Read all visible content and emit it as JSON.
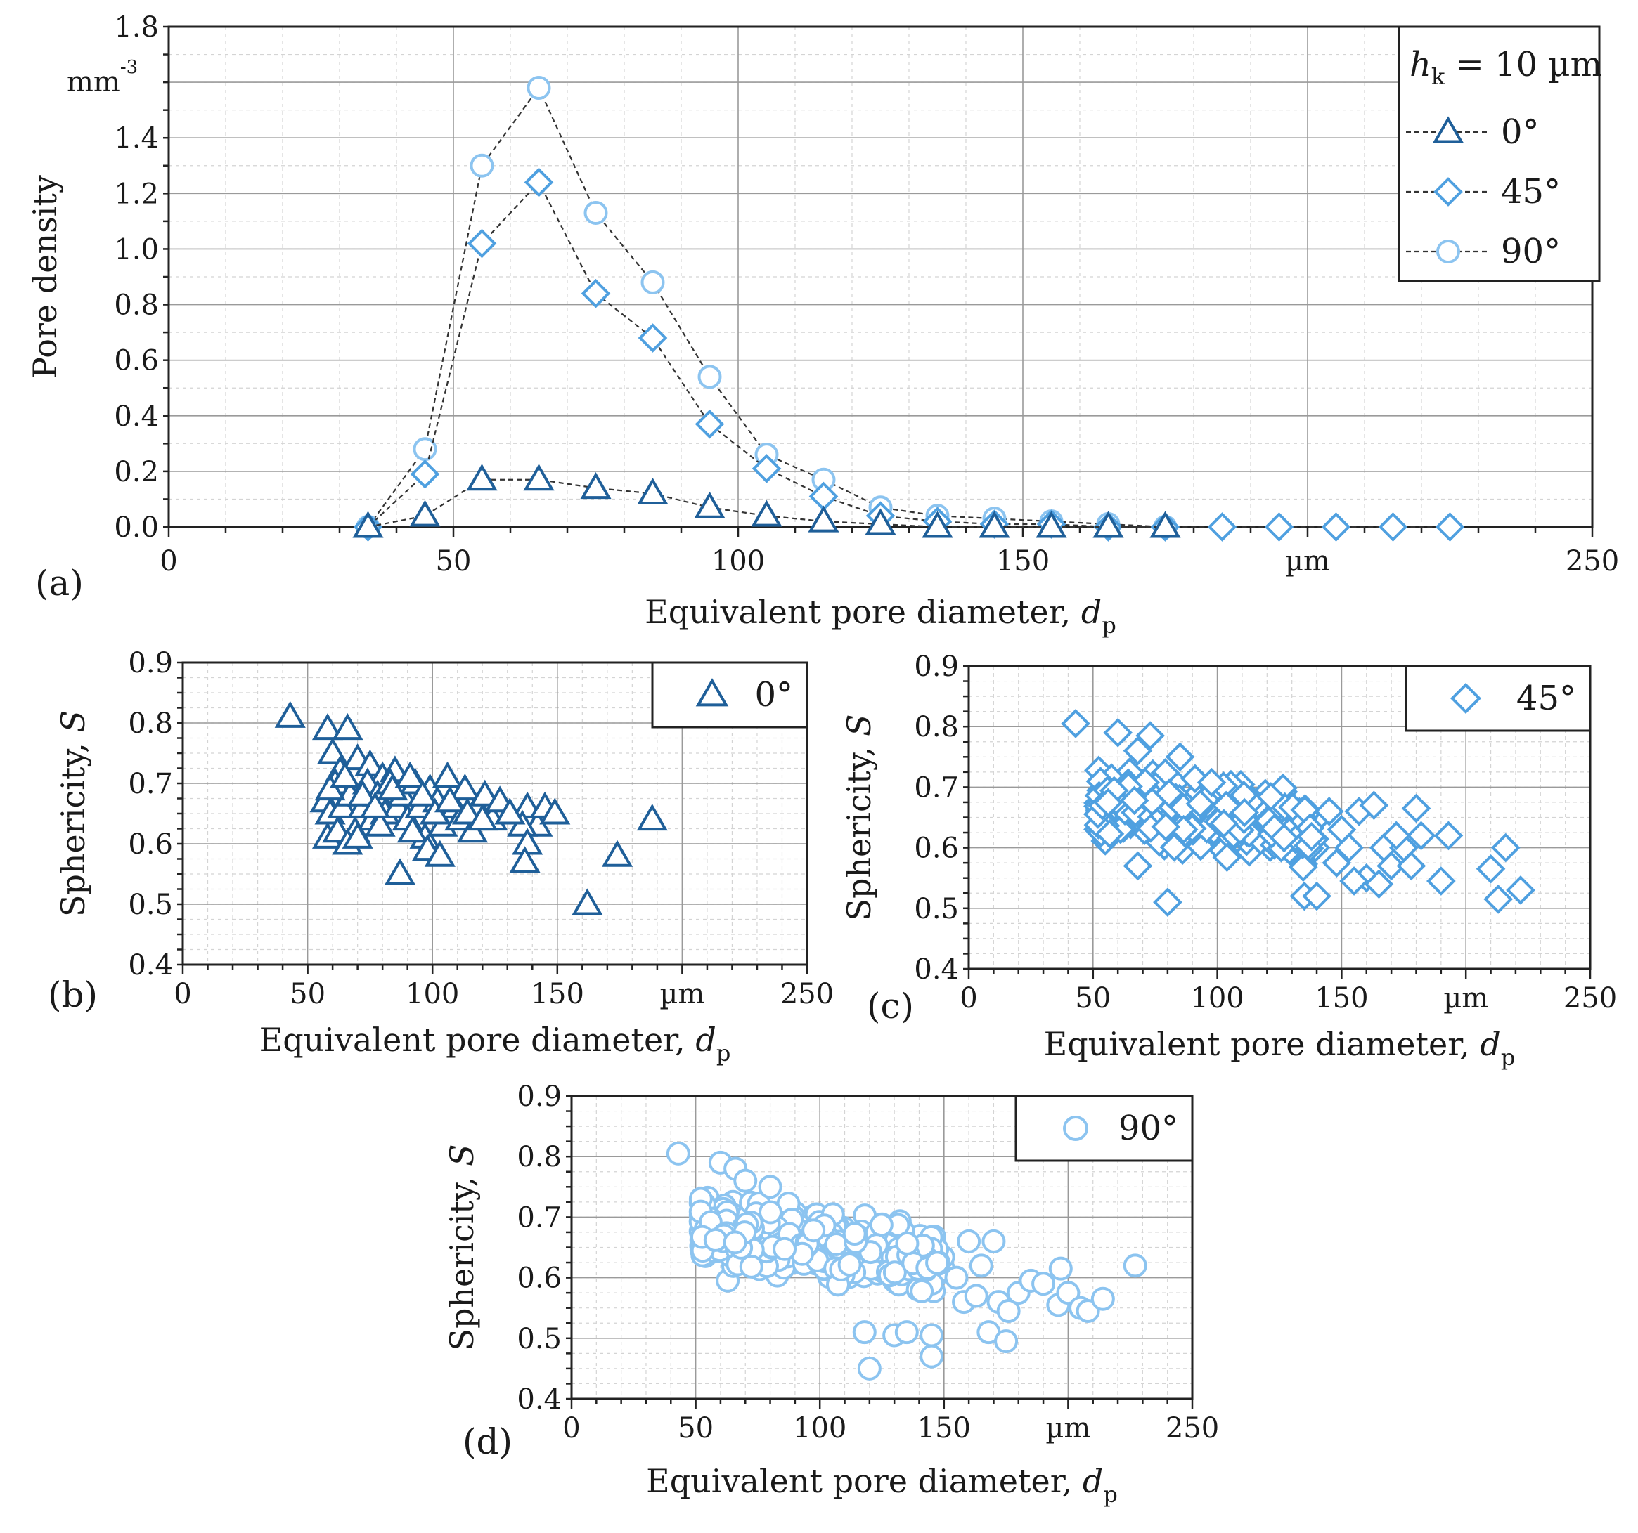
{
  "chart_data": [
    {
      "id": "a",
      "type": "line",
      "panel_label": "(a)",
      "title": "",
      "xlabel": "Equivalent pore diameter, ",
      "xlabel_var": "d",
      "xlabel_sub": "p",
      "ylabel": "Pore density",
      "y_unit": "mm",
      "y_unit_sup": "-3",
      "x_unit": "µm",
      "xlim": [
        0,
        250
      ],
      "ylim": [
        0,
        1.8
      ],
      "xticks": [
        "0",
        "50",
        "100",
        "150",
        "",
        "250"
      ],
      "yticks": [
        "0.0",
        "0.2",
        "0.4",
        "0.6",
        "0.8",
        "1.0",
        "1.2",
        "1.4",
        "",
        "1.8"
      ],
      "legend_title_var": "h",
      "legend_title_sub": "k",
      "legend_title_rest": " = 10 µm",
      "series": [
        {
          "name": "0°",
          "marker": "triangle",
          "color": "#1f5f99",
          "x": [
            35,
            45,
            55,
            65,
            75,
            85,
            95,
            105,
            115,
            125,
            135,
            145,
            155,
            165,
            175
          ],
          "y": [
            0.0,
            0.04,
            0.17,
            0.17,
            0.14,
            0.12,
            0.07,
            0.04,
            0.02,
            0.01,
            0.0,
            0.0,
            0.0,
            0.0,
            0.0
          ]
        },
        {
          "name": "45°",
          "marker": "diamond",
          "color": "#4fa0e0",
          "x": [
            35,
            45,
            55,
            65,
            75,
            85,
            95,
            105,
            115,
            125,
            135,
            145,
            155,
            165,
            175,
            185,
            195,
            205,
            215,
            225
          ],
          "y": [
            0.0,
            0.19,
            1.02,
            1.24,
            0.84,
            0.68,
            0.37,
            0.21,
            0.11,
            0.04,
            0.02,
            0.01,
            0.01,
            0.0,
            0.0,
            0.0,
            0.0,
            0.0,
            0.0,
            0.0
          ]
        },
        {
          "name": "90°",
          "marker": "circle",
          "color": "#8cc4f0",
          "x": [
            35,
            45,
            55,
            65,
            75,
            85,
            95,
            105,
            115,
            125,
            135,
            145,
            155,
            165,
            175
          ],
          "y": [
            0.0,
            0.28,
            1.3,
            1.58,
            1.13,
            0.88,
            0.54,
            0.26,
            0.17,
            0.07,
            0.04,
            0.03,
            0.02,
            0.01,
            0.0
          ]
        }
      ]
    },
    {
      "id": "b",
      "type": "scatter",
      "panel_label": "(b)",
      "xlabel": "Equivalent pore diameter, ",
      "xlabel_var": "d",
      "xlabel_sub": "p",
      "ylabel": "Sphericity, ",
      "ylabel_var": "S",
      "x_unit": "µm",
      "xlim": [
        0,
        250
      ],
      "ylim": [
        0.4,
        0.9
      ],
      "xticks": [
        "0",
        "50",
        "100",
        "150",
        "",
        "250"
      ],
      "yticks": [
        "0.4",
        "0.5",
        "0.6",
        "0.7",
        "0.8",
        "0.9"
      ],
      "legend": [
        "0°"
      ],
      "marker": "triangle",
      "color": "#1f5f99",
      "points": [
        [
          43,
          0.81
        ],
        [
          58,
          0.79
        ],
        [
          66,
          0.79
        ],
        [
          60,
          0.75
        ],
        [
          63,
          0.72
        ],
        [
          70,
          0.74
        ],
        [
          75,
          0.73
        ],
        [
          80,
          0.71
        ],
        [
          85,
          0.72
        ],
        [
          57,
          0.67
        ],
        [
          59,
          0.65
        ],
        [
          61,
          0.7
        ],
        [
          64,
          0.66
        ],
        [
          67,
          0.68
        ],
        [
          69,
          0.62
        ],
        [
          72,
          0.66
        ],
        [
          74,
          0.7
        ],
        [
          76,
          0.64
        ],
        [
          78,
          0.68
        ],
        [
          81,
          0.65
        ],
        [
          83,
          0.7
        ],
        [
          86,
          0.66
        ],
        [
          88,
          0.68
        ],
        [
          90,
          0.64
        ],
        [
          93,
          0.7
        ],
        [
          95,
          0.66
        ],
        [
          97,
          0.61
        ],
        [
          99,
          0.69
        ],
        [
          102,
          0.67
        ],
        [
          104,
          0.63
        ],
        [
          106,
          0.71
        ],
        [
          109,
          0.66
        ],
        [
          111,
          0.64
        ],
        [
          113,
          0.69
        ],
        [
          116,
          0.62
        ],
        [
          118,
          0.66
        ],
        [
          121,
          0.68
        ],
        [
          124,
          0.64
        ],
        [
          127,
          0.67
        ],
        [
          58,
          0.61
        ],
        [
          62,
          0.62
        ],
        [
          66,
          0.6
        ],
        [
          70,
          0.61
        ],
        [
          79,
          0.63
        ],
        [
          92,
          0.62
        ],
        [
          98,
          0.59
        ],
        [
          103,
          0.58
        ],
        [
          87,
          0.55
        ],
        [
          138,
          0.66
        ],
        [
          142,
          0.63
        ],
        [
          145,
          0.66
        ],
        [
          149,
          0.65
        ],
        [
          136,
          0.63
        ],
        [
          138,
          0.6
        ],
        [
          137,
          0.57
        ],
        [
          162,
          0.5
        ],
        [
          174,
          0.58
        ],
        [
          188,
          0.64
        ],
        [
          59,
          0.69
        ],
        [
          65,
          0.71
        ],
        [
          72,
          0.68
        ],
        [
          77,
          0.66
        ],
        [
          84,
          0.69
        ],
        [
          91,
          0.71
        ],
        [
          96,
          0.68
        ],
        [
          101,
          0.65
        ],
        [
          107,
          0.67
        ],
        [
          114,
          0.65
        ],
        [
          120,
          0.64
        ],
        [
          131,
          0.65
        ]
      ]
    },
    {
      "id": "c",
      "type": "scatter",
      "panel_label": "(c)",
      "xlabel": "Equivalent pore diameter, ",
      "xlabel_var": "d",
      "xlabel_sub": "p",
      "ylabel": "Sphericity, ",
      "ylabel_var": "S",
      "x_unit": "µm",
      "xlim": [
        0,
        250
      ],
      "ylim": [
        0.4,
        0.9
      ],
      "xticks": [
        "0",
        "50",
        "100",
        "150",
        "",
        "250"
      ],
      "yticks": [
        "0.4",
        "0.5",
        "0.6",
        "0.7",
        "0.8",
        "0.9"
      ],
      "legend": [
        "45°"
      ],
      "marker": "diamond",
      "color": "#4fa0e0",
      "cloud": {
        "n": 300,
        "x_range": [
          52,
          140
        ],
        "y_center": 0.655,
        "y_spread": 0.075,
        "slope": -0.0006,
        "seed": 7
      },
      "points": [
        [
          43,
          0.805
        ],
        [
          60,
          0.79
        ],
        [
          68,
          0.76
        ],
        [
          73,
          0.785
        ],
        [
          85,
          0.75
        ],
        [
          80,
          0.51
        ],
        [
          68,
          0.57
        ],
        [
          145,
          0.66
        ],
        [
          150,
          0.63
        ],
        [
          153,
          0.6
        ],
        [
          157,
          0.66
        ],
        [
          160,
          0.55
        ],
        [
          163,
          0.67
        ],
        [
          167,
          0.6
        ],
        [
          170,
          0.57
        ],
        [
          175,
          0.6
        ],
        [
          178,
          0.57
        ],
        [
          180,
          0.665
        ],
        [
          182,
          0.62
        ],
        [
          190,
          0.545
        ],
        [
          193,
          0.62
        ],
        [
          210,
          0.565
        ],
        [
          213,
          0.515
        ],
        [
          216,
          0.6
        ],
        [
          222,
          0.53
        ],
        [
          135,
          0.52
        ],
        [
          140,
          0.52
        ],
        [
          155,
          0.545
        ],
        [
          165,
          0.54
        ],
        [
          148,
          0.575
        ],
        [
          172,
          0.62
        ]
      ]
    },
    {
      "id": "d",
      "type": "scatter",
      "panel_label": "(d)",
      "xlabel": "Equivalent pore diameter, ",
      "xlabel_var": "d",
      "xlabel_sub": "p",
      "ylabel": "Sphericity, ",
      "ylabel_var": "S",
      "x_unit": "µm",
      "xlim": [
        0,
        250
      ],
      "ylim": [
        0.4,
        0.9
      ],
      "xticks": [
        "0",
        "50",
        "100",
        "150",
        "",
        "250"
      ],
      "yticks": [
        "0.4",
        "0.5",
        "0.6",
        "0.7",
        "0.8",
        "0.9"
      ],
      "legend": [
        "90°"
      ],
      "marker": "circle",
      "color": "#8cc4f0",
      "cloud": {
        "n": 420,
        "x_range": [
          52,
          150
        ],
        "y_center": 0.655,
        "y_spread": 0.075,
        "slope": -0.0005,
        "seed": 13
      },
      "points": [
        [
          43,
          0.805
        ],
        [
          60,
          0.79
        ],
        [
          66,
          0.78
        ],
        [
          70,
          0.76
        ],
        [
          80,
          0.75
        ],
        [
          120,
          0.45
        ],
        [
          145,
          0.47
        ],
        [
          118,
          0.51
        ],
        [
          130,
          0.505
        ],
        [
          135,
          0.51
        ],
        [
          145,
          0.505
        ],
        [
          160,
          0.66
        ],
        [
          165,
          0.62
        ],
        [
          168,
          0.51
        ],
        [
          170,
          0.66
        ],
        [
          172,
          0.56
        ],
        [
          175,
          0.495
        ],
        [
          176,
          0.545
        ],
        [
          180,
          0.575
        ],
        [
          185,
          0.595
        ],
        [
          190,
          0.59
        ],
        [
          196,
          0.555
        ],
        [
          197,
          0.615
        ],
        [
          200,
          0.575
        ],
        [
          205,
          0.55
        ],
        [
          208,
          0.545
        ],
        [
          214,
          0.565
        ],
        [
          227,
          0.62
        ],
        [
          155,
          0.6
        ],
        [
          158,
          0.56
        ],
        [
          163,
          0.57
        ]
      ]
    }
  ]
}
